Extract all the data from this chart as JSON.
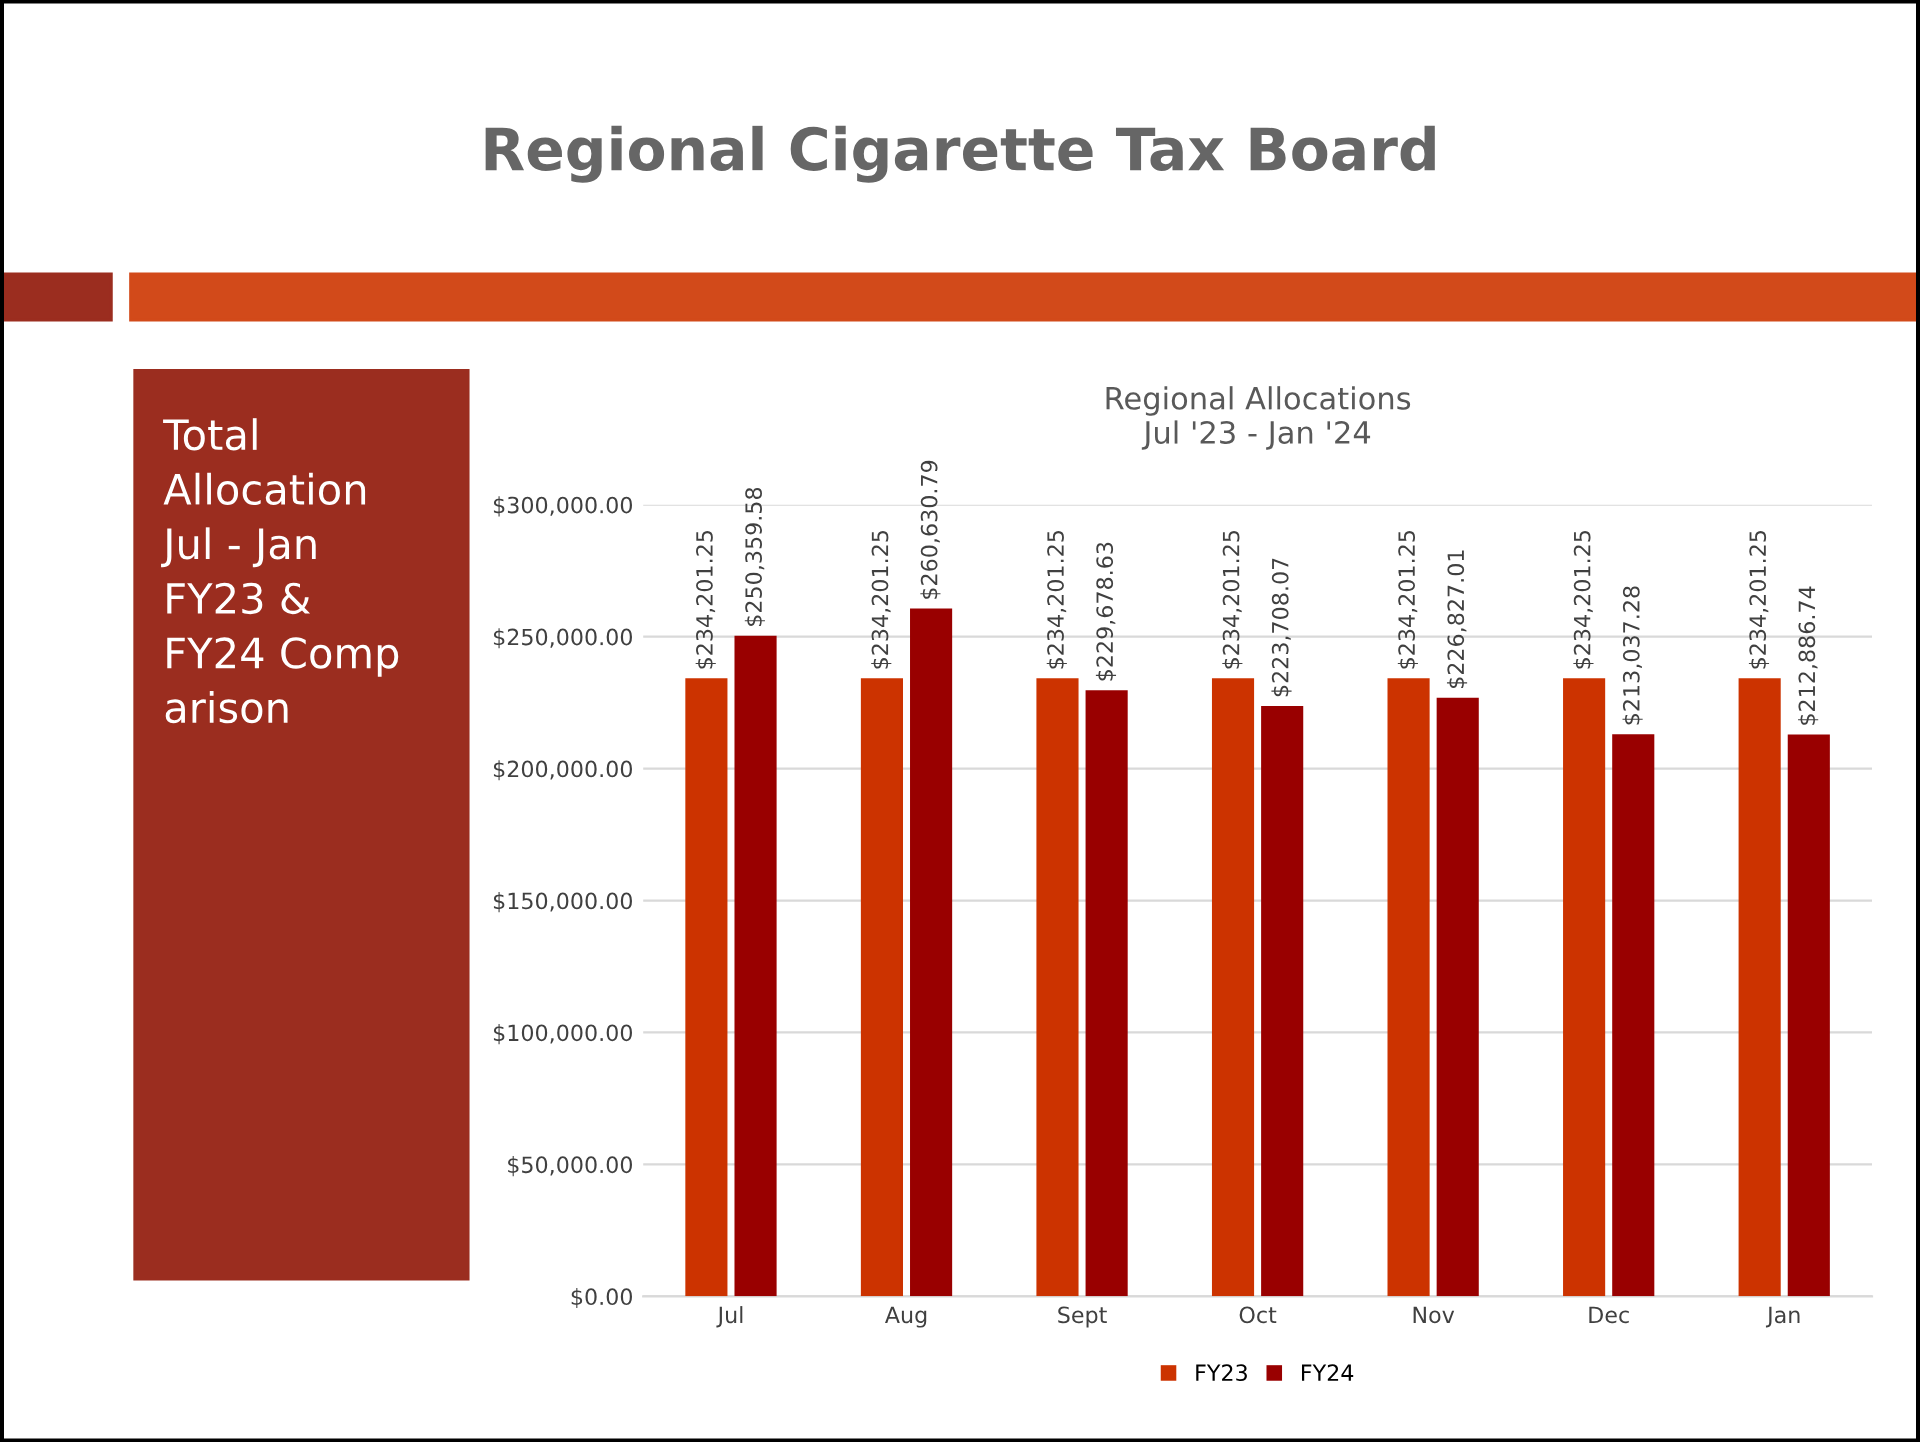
{
  "chart_data": {
    "type": "bar",
    "title": "Regional Cigarette Tax Board",
    "subtitle": "Regional Allocations\nJul '23 - Jan '24",
    "annotations": [
      "Total\nAllocation\nJul - Jan\nFY23 &\nFY24 Comp\narison"
    ],
    "categories": [
      "Jul",
      "Aug",
      "Sept",
      "Oct",
      "Nov",
      "Dec",
      "Jan"
    ],
    "series": [
      {
        "name": "FY23",
        "color": "#cc3300",
        "values": [
          234201.25,
          234201.25,
          234201.25,
          234201.25,
          234201.25,
          234201.25,
          234201.25
        ],
        "value_labels": [
          "$234,201.25",
          "$234,201.25",
          "$234,201.25",
          "$234,201.25",
          "$234,201.25",
          "$234,201.25",
          "$234,201.25"
        ]
      },
      {
        "name": "FY24",
        "color": "#990000",
        "values": [
          250359.58,
          260630.79,
          229678.63,
          223708.07,
          226827.01,
          213037.28,
          212886.74
        ],
        "value_labels": [
          "$250,359.58",
          "$260,630.79",
          "$229,678.63",
          "$223,708.07",
          "$226,827.01",
          "$213,037.28",
          "$212,886.74"
        ]
      }
    ],
    "ylim": [
      0,
      300000
    ],
    "yticks": [
      {
        "value": 0,
        "label": "$0.00"
      },
      {
        "value": 50000,
        "label": "$50,000.00"
      },
      {
        "value": 100000,
        "label": "$100,000.00"
      },
      {
        "value": 150000,
        "label": "$150,000.00"
      },
      {
        "value": 200000,
        "label": "$200,000.00"
      },
      {
        "value": 250000,
        "label": "$250,000.00"
      },
      {
        "value": 300000,
        "label": "$300,000.00"
      }
    ],
    "grid": "y",
    "legend": "bottom"
  }
}
